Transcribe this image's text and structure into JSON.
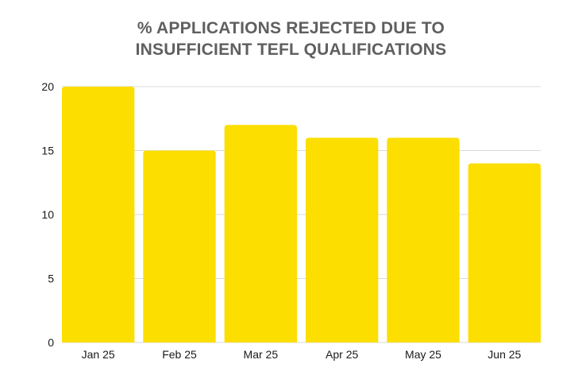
{
  "chart_data": {
    "type": "bar",
    "title_lines": [
      "% APPLICATIONS REJECTED DUE TO",
      "INSUFFICIENT TEFL QUALIFICATIONS"
    ],
    "categories": [
      "Jan 25",
      "Feb 25",
      "Mar 25",
      "Apr 25",
      "May 25",
      "Jun 25"
    ],
    "values": [
      20,
      15,
      17,
      16,
      16,
      14
    ],
    "ylim": [
      0,
      20
    ],
    "yticks": [
      0,
      5,
      10,
      15,
      20
    ],
    "grid": true,
    "legend": "none",
    "bar_color": "#FCDE00",
    "grid_color": "#d9d9d9"
  }
}
